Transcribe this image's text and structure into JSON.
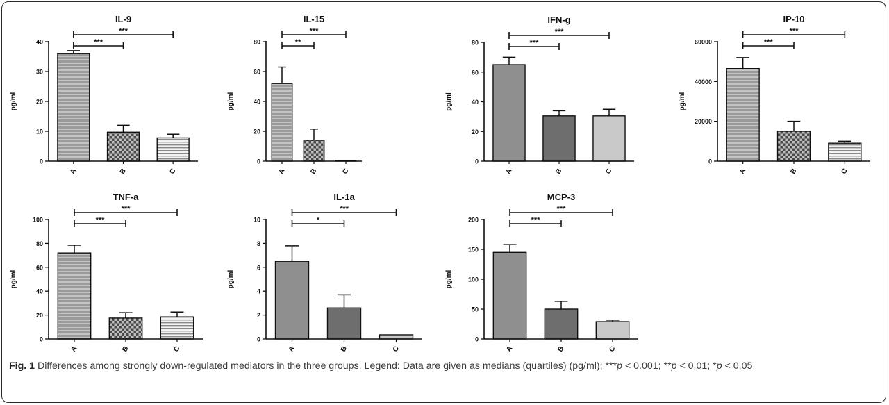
{
  "chart_data": [
    {
      "type": "bar",
      "title": "IL-9",
      "ylabel": "pg/ml",
      "categories": [
        "A",
        "B",
        "C"
      ],
      "values": [
        36,
        9.7,
        7.8
      ],
      "error_upper": [
        37,
        12,
        9
      ],
      "ylim": [
        0,
        40
      ],
      "yticks": [
        "0",
        "10",
        "20",
        "30",
        "40"
      ],
      "significance": [
        {
          "pair": [
            "A",
            "B"
          ],
          "label": "***"
        },
        {
          "pair": [
            "A",
            "C"
          ],
          "label": "***"
        }
      ]
    },
    {
      "type": "bar",
      "title": "IL-15",
      "ylabel": "pg/ml",
      "categories": [
        "A",
        "B",
        "C"
      ],
      "values": [
        52,
        14,
        0.5
      ],
      "error_upper": [
        63,
        21.5,
        0.5
      ],
      "ylim": [
        0,
        80
      ],
      "yticks": [
        "0",
        "20",
        "40",
        "60",
        "80"
      ],
      "significance": [
        {
          "pair": [
            "A",
            "B"
          ],
          "label": "**"
        },
        {
          "pair": [
            "A",
            "C"
          ],
          "label": "***"
        }
      ]
    },
    {
      "type": "bar",
      "title": "IFN-g",
      "ylabel": "pg/ml",
      "categories": [
        "A",
        "B",
        "C"
      ],
      "values": [
        65,
        30.5,
        30.5
      ],
      "error_upper": [
        70,
        34,
        35
      ],
      "ylim": [
        0,
        80
      ],
      "yticks": [
        "0",
        "20",
        "40",
        "60",
        "80"
      ],
      "significance": [
        {
          "pair": [
            "A",
            "B"
          ],
          "label": "***"
        },
        {
          "pair": [
            "A",
            "C"
          ],
          "label": "***"
        }
      ]
    },
    {
      "type": "bar",
      "title": "IP-10",
      "ylabel": "pg/ml",
      "categories": [
        "A",
        "B",
        "C"
      ],
      "values": [
        46500,
        15000,
        9000
      ],
      "error_upper": [
        52000,
        20000,
        10000
      ],
      "ylim": [
        0,
        60000
      ],
      "yticks": [
        "0",
        "20000",
        "40000",
        "60000"
      ],
      "significance": [
        {
          "pair": [
            "A",
            "B"
          ],
          "label": "***"
        },
        {
          "pair": [
            "A",
            "C"
          ],
          "label": "***"
        }
      ]
    },
    {
      "type": "bar",
      "title": "TNF-a",
      "ylabel": "pg/ml",
      "categories": [
        "A",
        "B",
        "C"
      ],
      "values": [
        72,
        17.5,
        18.5
      ],
      "error_upper": [
        78.5,
        22,
        22.5
      ],
      "ylim": [
        0,
        100
      ],
      "yticks": [
        "0",
        "20",
        "40",
        "60",
        "80",
        "100"
      ],
      "significance": [
        {
          "pair": [
            "A",
            "B"
          ],
          "label": "***"
        },
        {
          "pair": [
            "A",
            "C"
          ],
          "label": "***"
        }
      ]
    },
    {
      "type": "bar",
      "title": "IL-1a",
      "ylabel": "pg/ml",
      "categories": [
        "A",
        "B",
        "C"
      ],
      "values": [
        6.5,
        2.6,
        0.35
      ],
      "error_upper": [
        7.8,
        3.7,
        0.35
      ],
      "ylim": [
        0,
        10
      ],
      "yticks": [
        "0",
        "2",
        "4",
        "6",
        "8",
        "10"
      ],
      "significance": [
        {
          "pair": [
            "A",
            "B"
          ],
          "label": "*"
        },
        {
          "pair": [
            "A",
            "C"
          ],
          "label": "***"
        }
      ]
    },
    {
      "type": "bar",
      "title": "MCP-3",
      "ylabel": "pg/ml",
      "categories": [
        "A",
        "B",
        "C"
      ],
      "values": [
        145,
        50,
        29
      ],
      "error_upper": [
        158,
        63,
        31.5
      ],
      "ylim": [
        0,
        200
      ],
      "yticks": [
        "0",
        "50",
        "100",
        "150",
        "200"
      ],
      "significance": [
        {
          "pair": [
            "A",
            "B"
          ],
          "label": "***"
        },
        {
          "pair": [
            "A",
            "C"
          ],
          "label": "***"
        }
      ]
    }
  ],
  "colors": {
    "bar_A": "#8f8f8f",
    "bar_B": "#6e6e6e",
    "bar_C": "#c9c9c9",
    "axis": "#111111",
    "frame": "#2a2a2a"
  },
  "caption": {
    "label": "Fig. 1",
    "text_1": " Differences among strongly down-regulated mediators in the three groups. Legend: Data are given as medians (quartiles) (pg/ml); ***",
    "p1": "p",
    "text_2": " < 0.001; **",
    "p2": "p",
    "text_3": " < 0.01; *",
    "p3": "p",
    "text_4": " < 0.05"
  }
}
